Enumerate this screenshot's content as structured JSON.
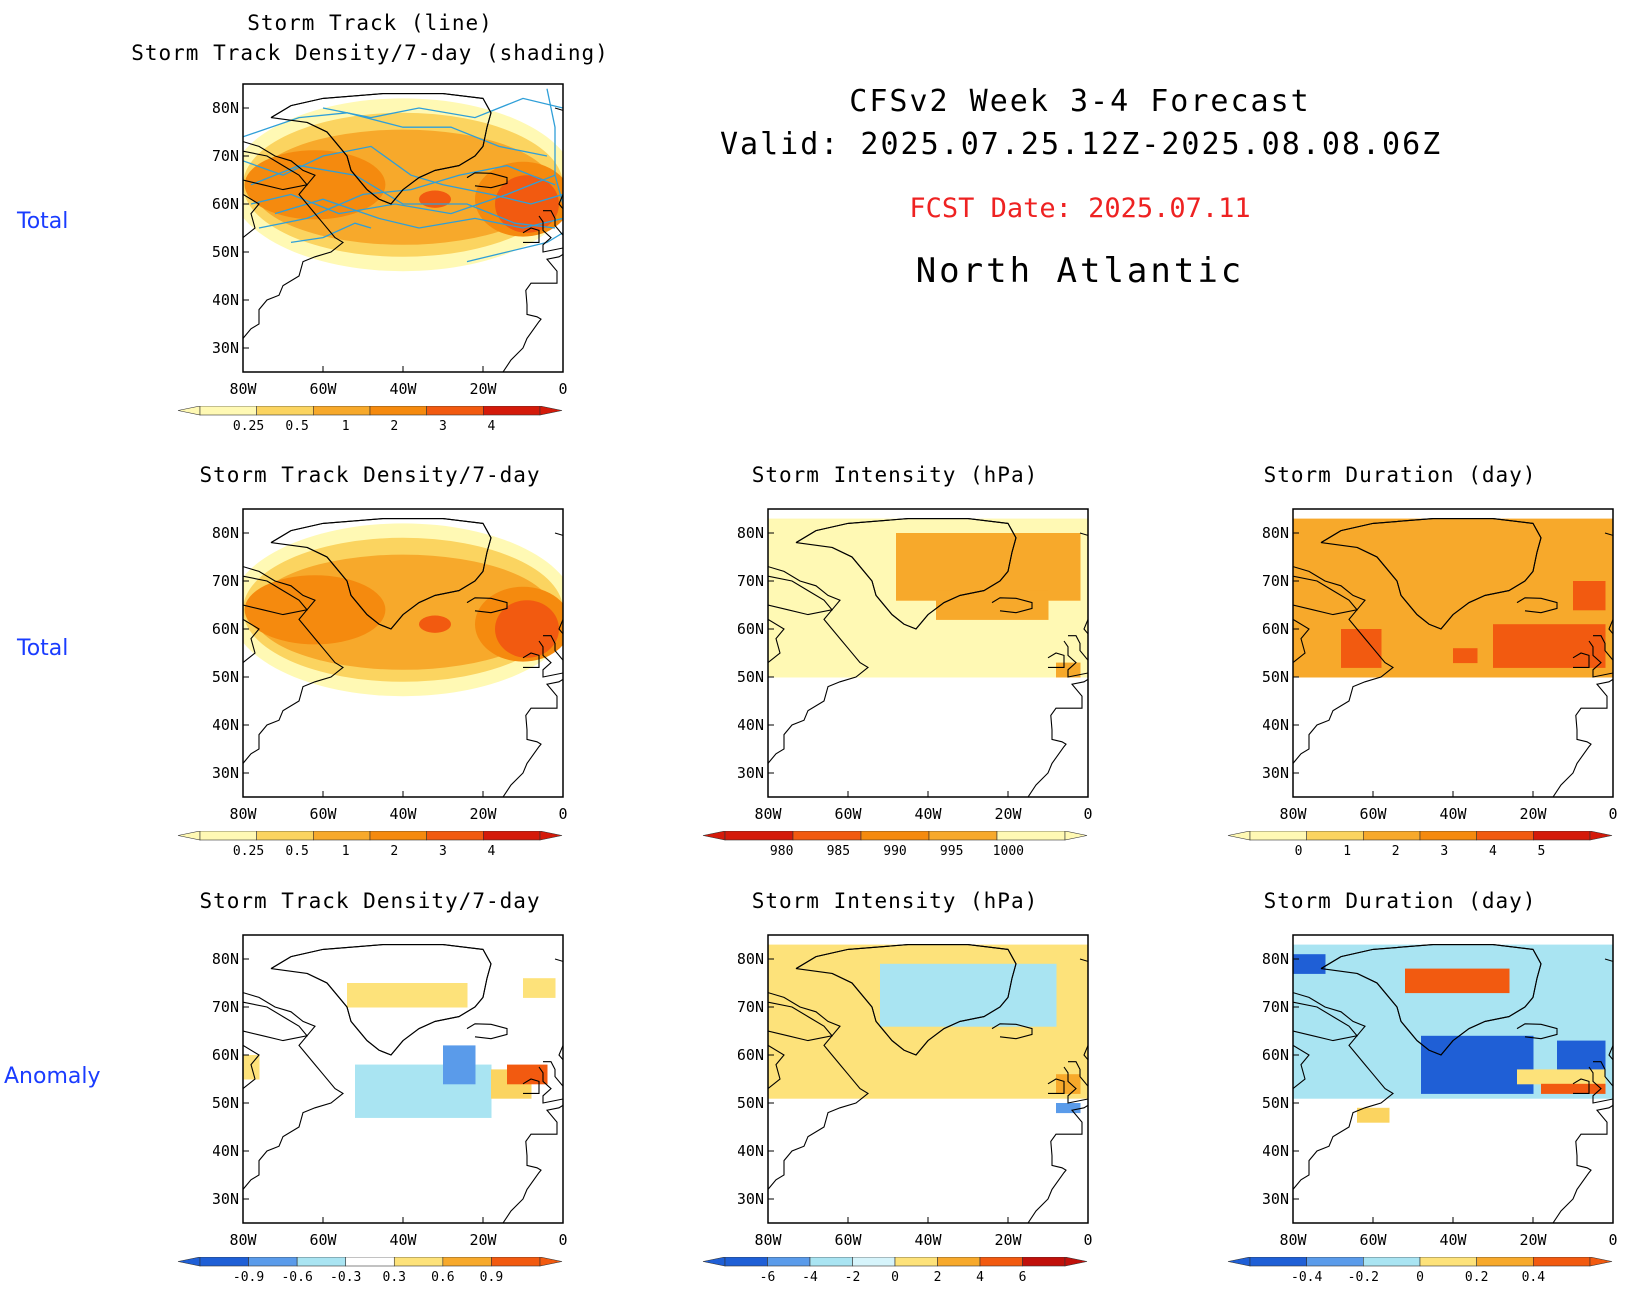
{
  "header": {
    "line1": "CFSv2 Week 3-4 Forecast",
    "line2": "Valid: 2025.07.25.12Z-2025.08.08.06Z",
    "fcst_date": "FCST Date: 2025.07.11",
    "region": "North Atlantic"
  },
  "row_labels": [
    "Total",
    "Total",
    "Anomaly"
  ],
  "axes": {
    "lat_labels": [
      "80N",
      "70N",
      "60N",
      "50N",
      "40N",
      "30N"
    ],
    "lon_labels": [
      "80W",
      "60W",
      "40W",
      "20W",
      "0"
    ]
  },
  "panels": [
    {
      "id": "p0",
      "title": [
        "Storm Track (line)",
        "Storm Track Density/7-day (shading)"
      ],
      "colorbar": {
        "labels": [
          "0.25",
          "0.5",
          "1",
          "2",
          "3",
          "4"
        ],
        "colors": [
          "#fff9b4",
          "#fbd460",
          "#f7a92b",
          "#f58a0e",
          "#f25a10",
          "#d41a0a"
        ]
      }
    },
    {
      "id": "p1",
      "title": [
        "Storm Track Density/7-day"
      ],
      "colorbar": {
        "labels": [
          "0.25",
          "0.5",
          "1",
          "2",
          "3",
          "4"
        ],
        "colors": [
          "#fff9b4",
          "#fbd460",
          "#f7a92b",
          "#f58a0e",
          "#f25a10",
          "#d41a0a"
        ]
      }
    },
    {
      "id": "p2",
      "title": [
        "Storm Intensity (hPa)"
      ],
      "colorbar": {
        "labels": [
          "980",
          "985",
          "990",
          "995",
          "1000"
        ],
        "colors": [
          "#d41a0a",
          "#f25a10",
          "#f58a0e",
          "#f7a92b",
          "#fff9b4"
        ]
      }
    },
    {
      "id": "p3",
      "title": [
        "Storm Duration (day)"
      ],
      "colorbar": {
        "labels": [
          "0",
          "1",
          "2",
          "3",
          "4",
          "5"
        ],
        "colors": [
          "#fff9b4",
          "#fbd460",
          "#f7a92b",
          "#f58a0e",
          "#f25a10",
          "#d41a0a"
        ]
      }
    },
    {
      "id": "p4",
      "title": [
        "Storm Track Density/7-day"
      ],
      "colorbar": {
        "labels": [
          "-0.9",
          "-0.6",
          "-0.3",
          "0.3",
          "0.6",
          "0.9"
        ],
        "colors": [
          "#1f5fd6",
          "#5a9bea",
          "#a9e4f2",
          "#ffffff",
          "#fde27a",
          "#f7a92b",
          "#f25a10"
        ]
      }
    },
    {
      "id": "p5",
      "title": [
        "Storm Intensity (hPa)"
      ],
      "colorbar": {
        "labels": [
          "-6",
          "-4",
          "-2",
          "0",
          "2",
          "4",
          "6"
        ],
        "colors": [
          "#1f5fd6",
          "#5a9bea",
          "#a9e4f2",
          "#d6f4fb",
          "#fde27a",
          "#f7a92b",
          "#f25a10",
          "#c0100a"
        ]
      }
    },
    {
      "id": "p6",
      "title": [
        "Storm Duration (day)"
      ],
      "colorbar": {
        "labels": [
          "-0.4",
          "-0.2",
          "0",
          "0.2",
          "0.4"
        ],
        "colors": [
          "#1f5fd6",
          "#5a9bea",
          "#a9e4f2",
          "#fde27a",
          "#f7a92b",
          "#f25a10"
        ]
      }
    }
  ]
}
